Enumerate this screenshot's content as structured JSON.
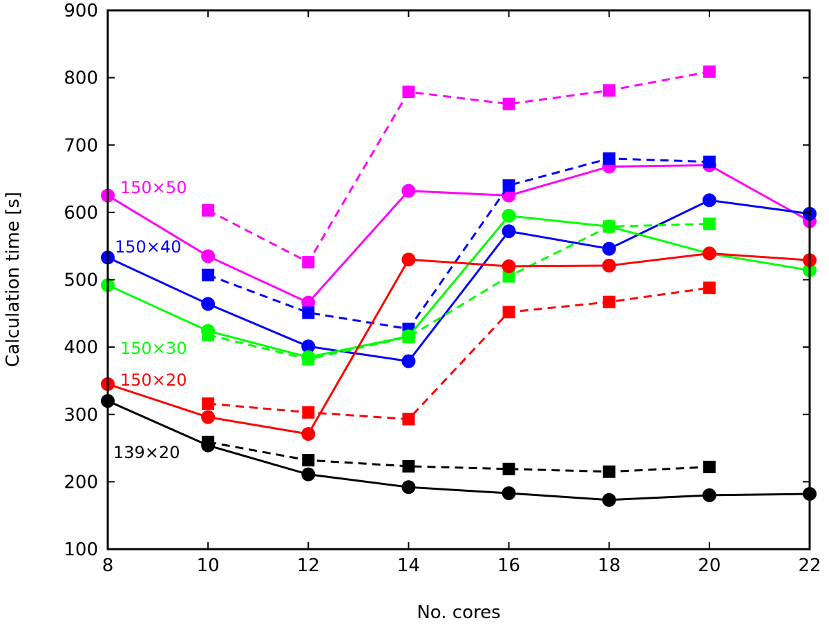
{
  "chart_data": {
    "type": "line",
    "title": "",
    "xlabel": "No. cores",
    "ylabel": "Calculation time [s]",
    "xlim": [
      8,
      22
    ],
    "ylim": [
      100,
      900
    ],
    "xticks": [
      8,
      10,
      12,
      14,
      16,
      18,
      20,
      22
    ],
    "yticks": [
      100,
      200,
      300,
      400,
      500,
      600,
      700,
      800,
      900
    ],
    "grid": false,
    "series": [
      {
        "name": "150×50",
        "color": "#ff00ff",
        "solid": {
          "x": [
            8,
            10,
            12,
            14,
            16,
            18,
            20,
            22
          ],
          "y": [
            625,
            535,
            466,
            632,
            625,
            668,
            670,
            587
          ]
        },
        "dashed": {
          "x": [
            10,
            12,
            14,
            16,
            18,
            20
          ],
          "y": [
            603,
            526,
            779,
            761,
            781,
            809
          ]
        }
      },
      {
        "name": "150×40",
        "color": "#0000ff",
        "solid": {
          "x": [
            8,
            10,
            12,
            14,
            16,
            18,
            20,
            22
          ],
          "y": [
            533,
            464,
            401,
            379,
            572,
            546,
            618,
            598
          ]
        },
        "dashed": {
          "x": [
            10,
            12,
            14,
            16,
            18,
            20
          ],
          "y": [
            507,
            451,
            427,
            640,
            680,
            675
          ]
        }
      },
      {
        "name": "150×30",
        "color": "#00ff00",
        "solid": {
          "x": [
            8,
            10,
            12,
            14,
            16,
            18,
            20,
            22
          ],
          "y": [
            492,
            424,
            385,
            416,
            595,
            579,
            539,
            514
          ]
        },
        "dashed": {
          "x": [
            10,
            12,
            14,
            16,
            18,
            20
          ],
          "y": [
            418,
            382,
            415,
            505,
            579,
            583
          ]
        }
      },
      {
        "name": "150×20",
        "color": "#ff0000",
        "solid": {
          "x": [
            8,
            10,
            12,
            14,
            16,
            18,
            20,
            22
          ],
          "y": [
            345,
            296,
            271,
            530,
            520,
            521,
            539,
            529
          ]
        },
        "dashed": {
          "x": [
            10,
            12,
            14,
            16,
            18,
            20
          ],
          "y": [
            316,
            303,
            293,
            452,
            467,
            488
          ]
        }
      },
      {
        "name": "139×20",
        "color": "#000000",
        "solid": {
          "x": [
            8,
            10,
            12,
            14,
            16,
            18,
            20,
            22
          ],
          "y": [
            320,
            254,
            211,
            192,
            183,
            173,
            180,
            182
          ]
        },
        "dashed": {
          "x": [
            10,
            12,
            14,
            16,
            18,
            20
          ],
          "y": [
            259,
            232,
            223,
            219,
            215,
            222
          ]
        }
      }
    ]
  }
}
